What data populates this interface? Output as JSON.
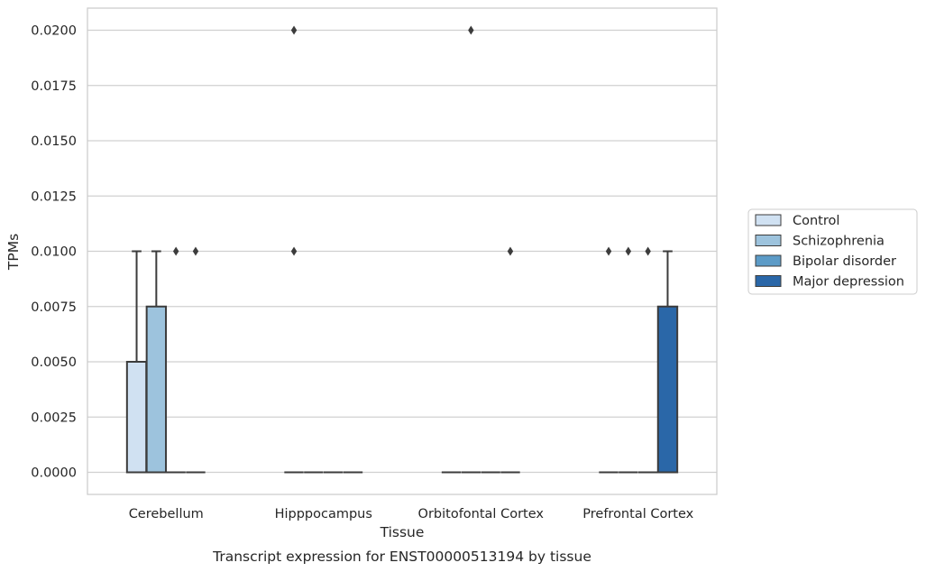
{
  "chart_data": {
    "type": "box",
    "xlabel": "Tissue",
    "ylabel": "TPMs",
    "caption": "Transcript expression for ENST00000513194 by tissue",
    "categories": [
      "Cerebellum",
      "Hipppocampus",
      "Orbitofontal Cortex",
      "Prefrontal Cortex"
    ],
    "ylim": [
      -0.001,
      0.021
    ],
    "yticks": [
      0.0,
      0.0025,
      0.005,
      0.0075,
      0.01,
      0.0125,
      0.015,
      0.0175,
      0.02
    ],
    "ytick_labels": [
      "0.0000",
      "0.0025",
      "0.0050",
      "0.0075",
      "0.0100",
      "0.0125",
      "0.0150",
      "0.0175",
      "0.0200"
    ],
    "grid": "horizontal",
    "legend_position": "right",
    "series": [
      {
        "name": "Control",
        "color": "#d0e1f2",
        "boxes": [
          {
            "q1": 0.0,
            "median": 0.0,
            "q3": 0.005,
            "whisker_low": 0.0,
            "whisker_high": 0.01,
            "outliers": []
          },
          {
            "q1": 0.0,
            "median": 0.0,
            "q3": 0.0,
            "whisker_low": 0.0,
            "whisker_high": 0.0,
            "outliers": [
              0.02,
              0.01
            ]
          },
          {
            "q1": 0.0,
            "median": 0.0,
            "q3": 0.0,
            "whisker_low": 0.0,
            "whisker_high": 0.0,
            "outliers": []
          },
          {
            "q1": 0.0,
            "median": 0.0,
            "q3": 0.0,
            "whisker_low": 0.0,
            "whisker_high": 0.0,
            "outliers": [
              0.01
            ]
          }
        ]
      },
      {
        "name": "Schizophrenia",
        "color": "#9dc3dd",
        "boxes": [
          {
            "q1": 0.0,
            "median": 0.0,
            "q3": 0.0075,
            "whisker_low": 0.0,
            "whisker_high": 0.01,
            "outliers": []
          },
          {
            "q1": 0.0,
            "median": 0.0,
            "q3": 0.0,
            "whisker_low": 0.0,
            "whisker_high": 0.0,
            "outliers": []
          },
          {
            "q1": 0.0,
            "median": 0.0,
            "q3": 0.0,
            "whisker_low": 0.0,
            "whisker_high": 0.0,
            "outliers": [
              0.02
            ]
          },
          {
            "q1": 0.0,
            "median": 0.0,
            "q3": 0.0,
            "whisker_low": 0.0,
            "whisker_high": 0.0,
            "outliers": [
              0.01
            ]
          }
        ]
      },
      {
        "name": "Bipolar disorder",
        "color": "#5c9bc7",
        "boxes": [
          {
            "q1": 0.0,
            "median": 0.0,
            "q3": 0.0,
            "whisker_low": 0.0,
            "whisker_high": 0.0,
            "outliers": [
              0.01
            ]
          },
          {
            "q1": 0.0,
            "median": 0.0,
            "q3": 0.0,
            "whisker_low": 0.0,
            "whisker_high": 0.0,
            "outliers": []
          },
          {
            "q1": 0.0,
            "median": 0.0,
            "q3": 0.0,
            "whisker_low": 0.0,
            "whisker_high": 0.0,
            "outliers": []
          },
          {
            "q1": 0.0,
            "median": 0.0,
            "q3": 0.0,
            "whisker_low": 0.0,
            "whisker_high": 0.0,
            "outliers": [
              0.01
            ]
          }
        ]
      },
      {
        "name": "Major depression",
        "color": "#2a67a8",
        "boxes": [
          {
            "q1": 0.0,
            "median": 0.0,
            "q3": 0.0,
            "whisker_low": 0.0,
            "whisker_high": 0.0,
            "outliers": [
              0.01
            ]
          },
          {
            "q1": 0.0,
            "median": 0.0,
            "q3": 0.0,
            "whisker_low": 0.0,
            "whisker_high": 0.0,
            "outliers": []
          },
          {
            "q1": 0.0,
            "median": 0.0,
            "q3": 0.0,
            "whisker_low": 0.0,
            "whisker_high": 0.0,
            "outliers": [
              0.01
            ]
          },
          {
            "q1": 0.0,
            "median": 0.0,
            "q3": 0.0075,
            "whisker_low": 0.0,
            "whisker_high": 0.01,
            "outliers": []
          }
        ]
      }
    ]
  }
}
